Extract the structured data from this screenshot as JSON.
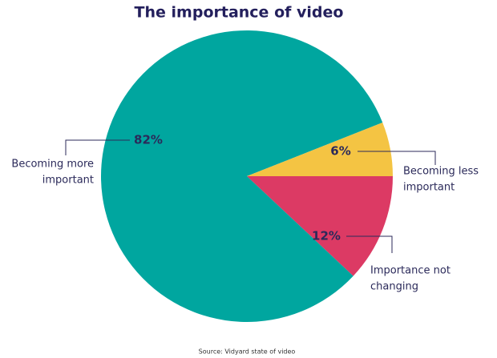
{
  "chart_data": {
    "type": "pie",
    "title": "The importance of video",
    "categories": [
      [
        "Importance not",
        "changing"
      ],
      [
        "Becoming more",
        "important"
      ],
      [
        "Becoming less",
        "important"
      ]
    ],
    "values": [
      12,
      82,
      6
    ],
    "value_labels": [
      "12%",
      "82%",
      "6%"
    ],
    "colors": [
      "#dc3a64",
      "#00a69f",
      "#f4c443"
    ],
    "source": "Source: Vidyard state of video"
  }
}
